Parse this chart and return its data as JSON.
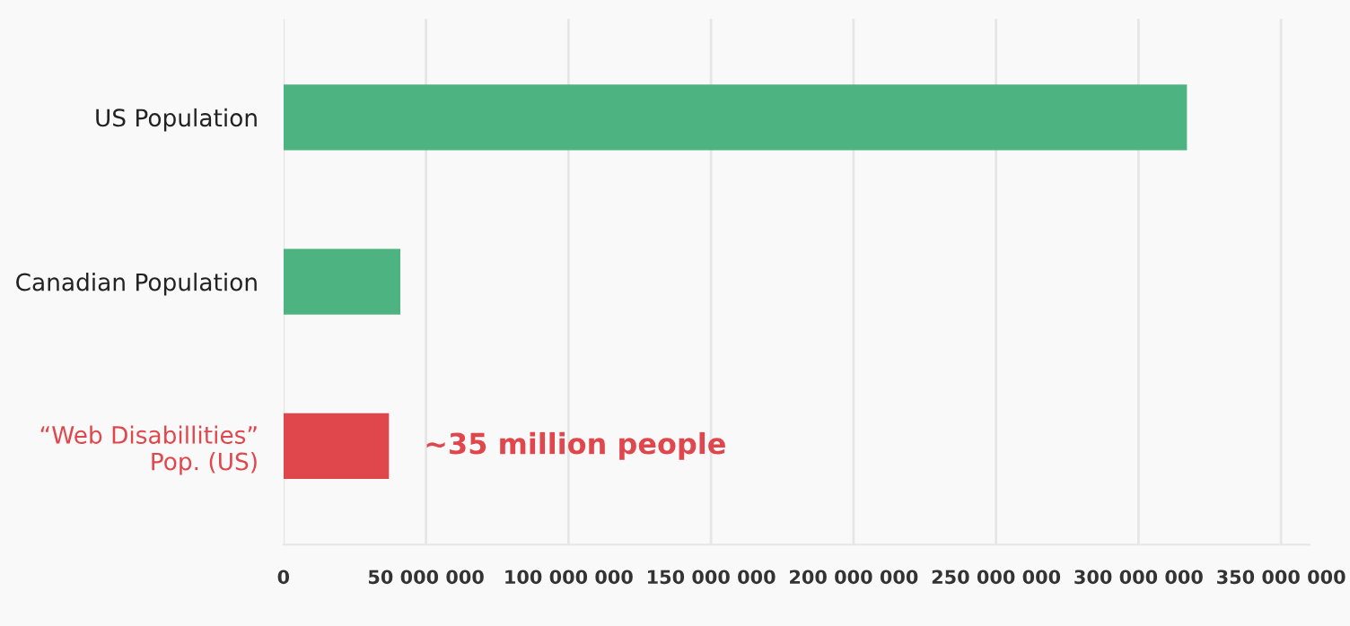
{
  "chart_data": {
    "type": "bar",
    "orientation": "horizontal",
    "categories": [
      "US Population",
      "Canadian Population",
      "“Web Disabillities”\nPop. (US)"
    ],
    "values": [
      317000000,
      41000000,
      37000000
    ],
    "colors": [
      "#4db380",
      "#4db380",
      "#e0474c"
    ],
    "xlim": [
      0,
      360000000
    ],
    "xticks": [
      0,
      {
        "value": 50000000,
        "label": "50 000 000"
      },
      {
        "value": 100000000,
        "label": "100 000 000"
      },
      {
        "value": 150000000,
        "label": "150 000 000"
      },
      {
        "value": 200000000,
        "label": "200 000 000"
      },
      {
        "value": 250000000,
        "label": "250 000 000"
      },
      {
        "value": 300000000,
        "label": "300 000 000"
      },
      {
        "value": 350000000,
        "label": "350 000 000"
      }
    ],
    "grid": "x",
    "annotations": [
      {
        "text": "~35 million people",
        "x": 37000000,
        "y": "“Web Disabillities”\nPop. (US)"
      }
    ]
  }
}
